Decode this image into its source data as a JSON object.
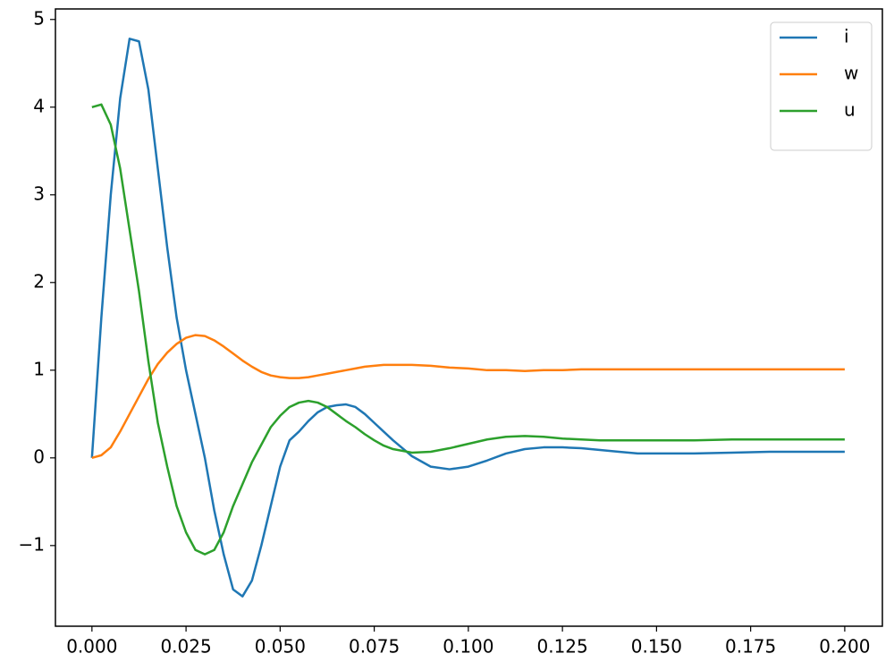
{
  "chart_data": {
    "type": "line",
    "x": [
      0,
      0.0025,
      0.005,
      0.0075,
      0.01,
      0.0125,
      0.015,
      0.0175,
      0.02,
      0.0225,
      0.025,
      0.0275,
      0.03,
      0.0325,
      0.035,
      0.0375,
      0.04,
      0.0425,
      0.045,
      0.0475,
      0.05,
      0.0525,
      0.055,
      0.0575,
      0.06,
      0.0625,
      0.065,
      0.0675,
      0.07,
      0.0725,
      0.075,
      0.0775,
      0.08,
      0.085,
      0.09,
      0.095,
      0.1,
      0.105,
      0.11,
      0.115,
      0.12,
      0.125,
      0.13,
      0.135,
      0.14,
      0.145,
      0.15,
      0.16,
      0.17,
      0.18,
      0.19,
      0.2
    ],
    "series": [
      {
        "name": "i",
        "color": "#1f77b4",
        "values": [
          0,
          1.6,
          3.0,
          4.1,
          4.78,
          4.75,
          4.2,
          3.3,
          2.4,
          1.6,
          1.0,
          0.5,
          0.0,
          -0.6,
          -1.1,
          -1.5,
          -1.58,
          -1.4,
          -1.0,
          -0.55,
          -0.1,
          0.2,
          0.3,
          0.42,
          0.52,
          0.58,
          0.6,
          0.61,
          0.58,
          0.5,
          0.4,
          0.3,
          0.2,
          0.02,
          -0.1,
          -0.13,
          -0.1,
          -0.03,
          0.05,
          0.1,
          0.12,
          0.12,
          0.11,
          0.09,
          0.07,
          0.05,
          0.05,
          0.05,
          0.06,
          0.07,
          0.07,
          0.07
        ]
      },
      {
        "name": "w",
        "color": "#ff7f0e",
        "values": [
          0,
          0.03,
          0.12,
          0.3,
          0.5,
          0.7,
          0.9,
          1.07,
          1.2,
          1.3,
          1.37,
          1.4,
          1.39,
          1.34,
          1.27,
          1.19,
          1.11,
          1.04,
          0.98,
          0.94,
          0.92,
          0.91,
          0.91,
          0.92,
          0.94,
          0.96,
          0.98,
          1.0,
          1.02,
          1.04,
          1.05,
          1.06,
          1.06,
          1.06,
          1.05,
          1.03,
          1.02,
          1.0,
          1.0,
          0.99,
          1.0,
          1.0,
          1.01,
          1.01,
          1.01,
          1.01,
          1.01,
          1.01,
          1.01,
          1.01,
          1.01,
          1.01
        ]
      },
      {
        "name": "u",
        "color": "#2ca02c",
        "values": [
          4.0,
          4.03,
          3.8,
          3.3,
          2.6,
          1.9,
          1.1,
          0.4,
          -0.1,
          -0.55,
          -0.85,
          -1.05,
          -1.1,
          -1.05,
          -0.85,
          -0.55,
          -0.3,
          -0.05,
          0.15,
          0.35,
          0.48,
          0.58,
          0.63,
          0.65,
          0.63,
          0.58,
          0.5,
          0.42,
          0.35,
          0.27,
          0.2,
          0.14,
          0.1,
          0.06,
          0.07,
          0.11,
          0.16,
          0.21,
          0.24,
          0.25,
          0.24,
          0.22,
          0.21,
          0.2,
          0.2,
          0.2,
          0.2,
          0.2,
          0.21,
          0.21,
          0.21,
          0.21
        ]
      }
    ],
    "xlim": [
      -0.0097,
      0.21
    ],
    "ylim": [
      -1.92,
      5.12
    ],
    "xticks": [
      {
        "value": 0,
        "label": "0.000"
      },
      {
        "value": 0.025,
        "label": "0.025"
      },
      {
        "value": 0.05,
        "label": "0.050"
      },
      {
        "value": 0.075,
        "label": "0.075"
      },
      {
        "value": 0.1,
        "label": "0.100"
      },
      {
        "value": 0.125,
        "label": "0.125"
      },
      {
        "value": 0.15,
        "label": "0.150"
      },
      {
        "value": 0.175,
        "label": "0.175"
      },
      {
        "value": 0.2,
        "label": "0.200"
      }
    ],
    "yticks": [
      {
        "value": -1,
        "label": "−1"
      },
      0,
      1,
      2,
      3,
      4,
      5
    ],
    "legend": "upper right",
    "grid": false
  }
}
